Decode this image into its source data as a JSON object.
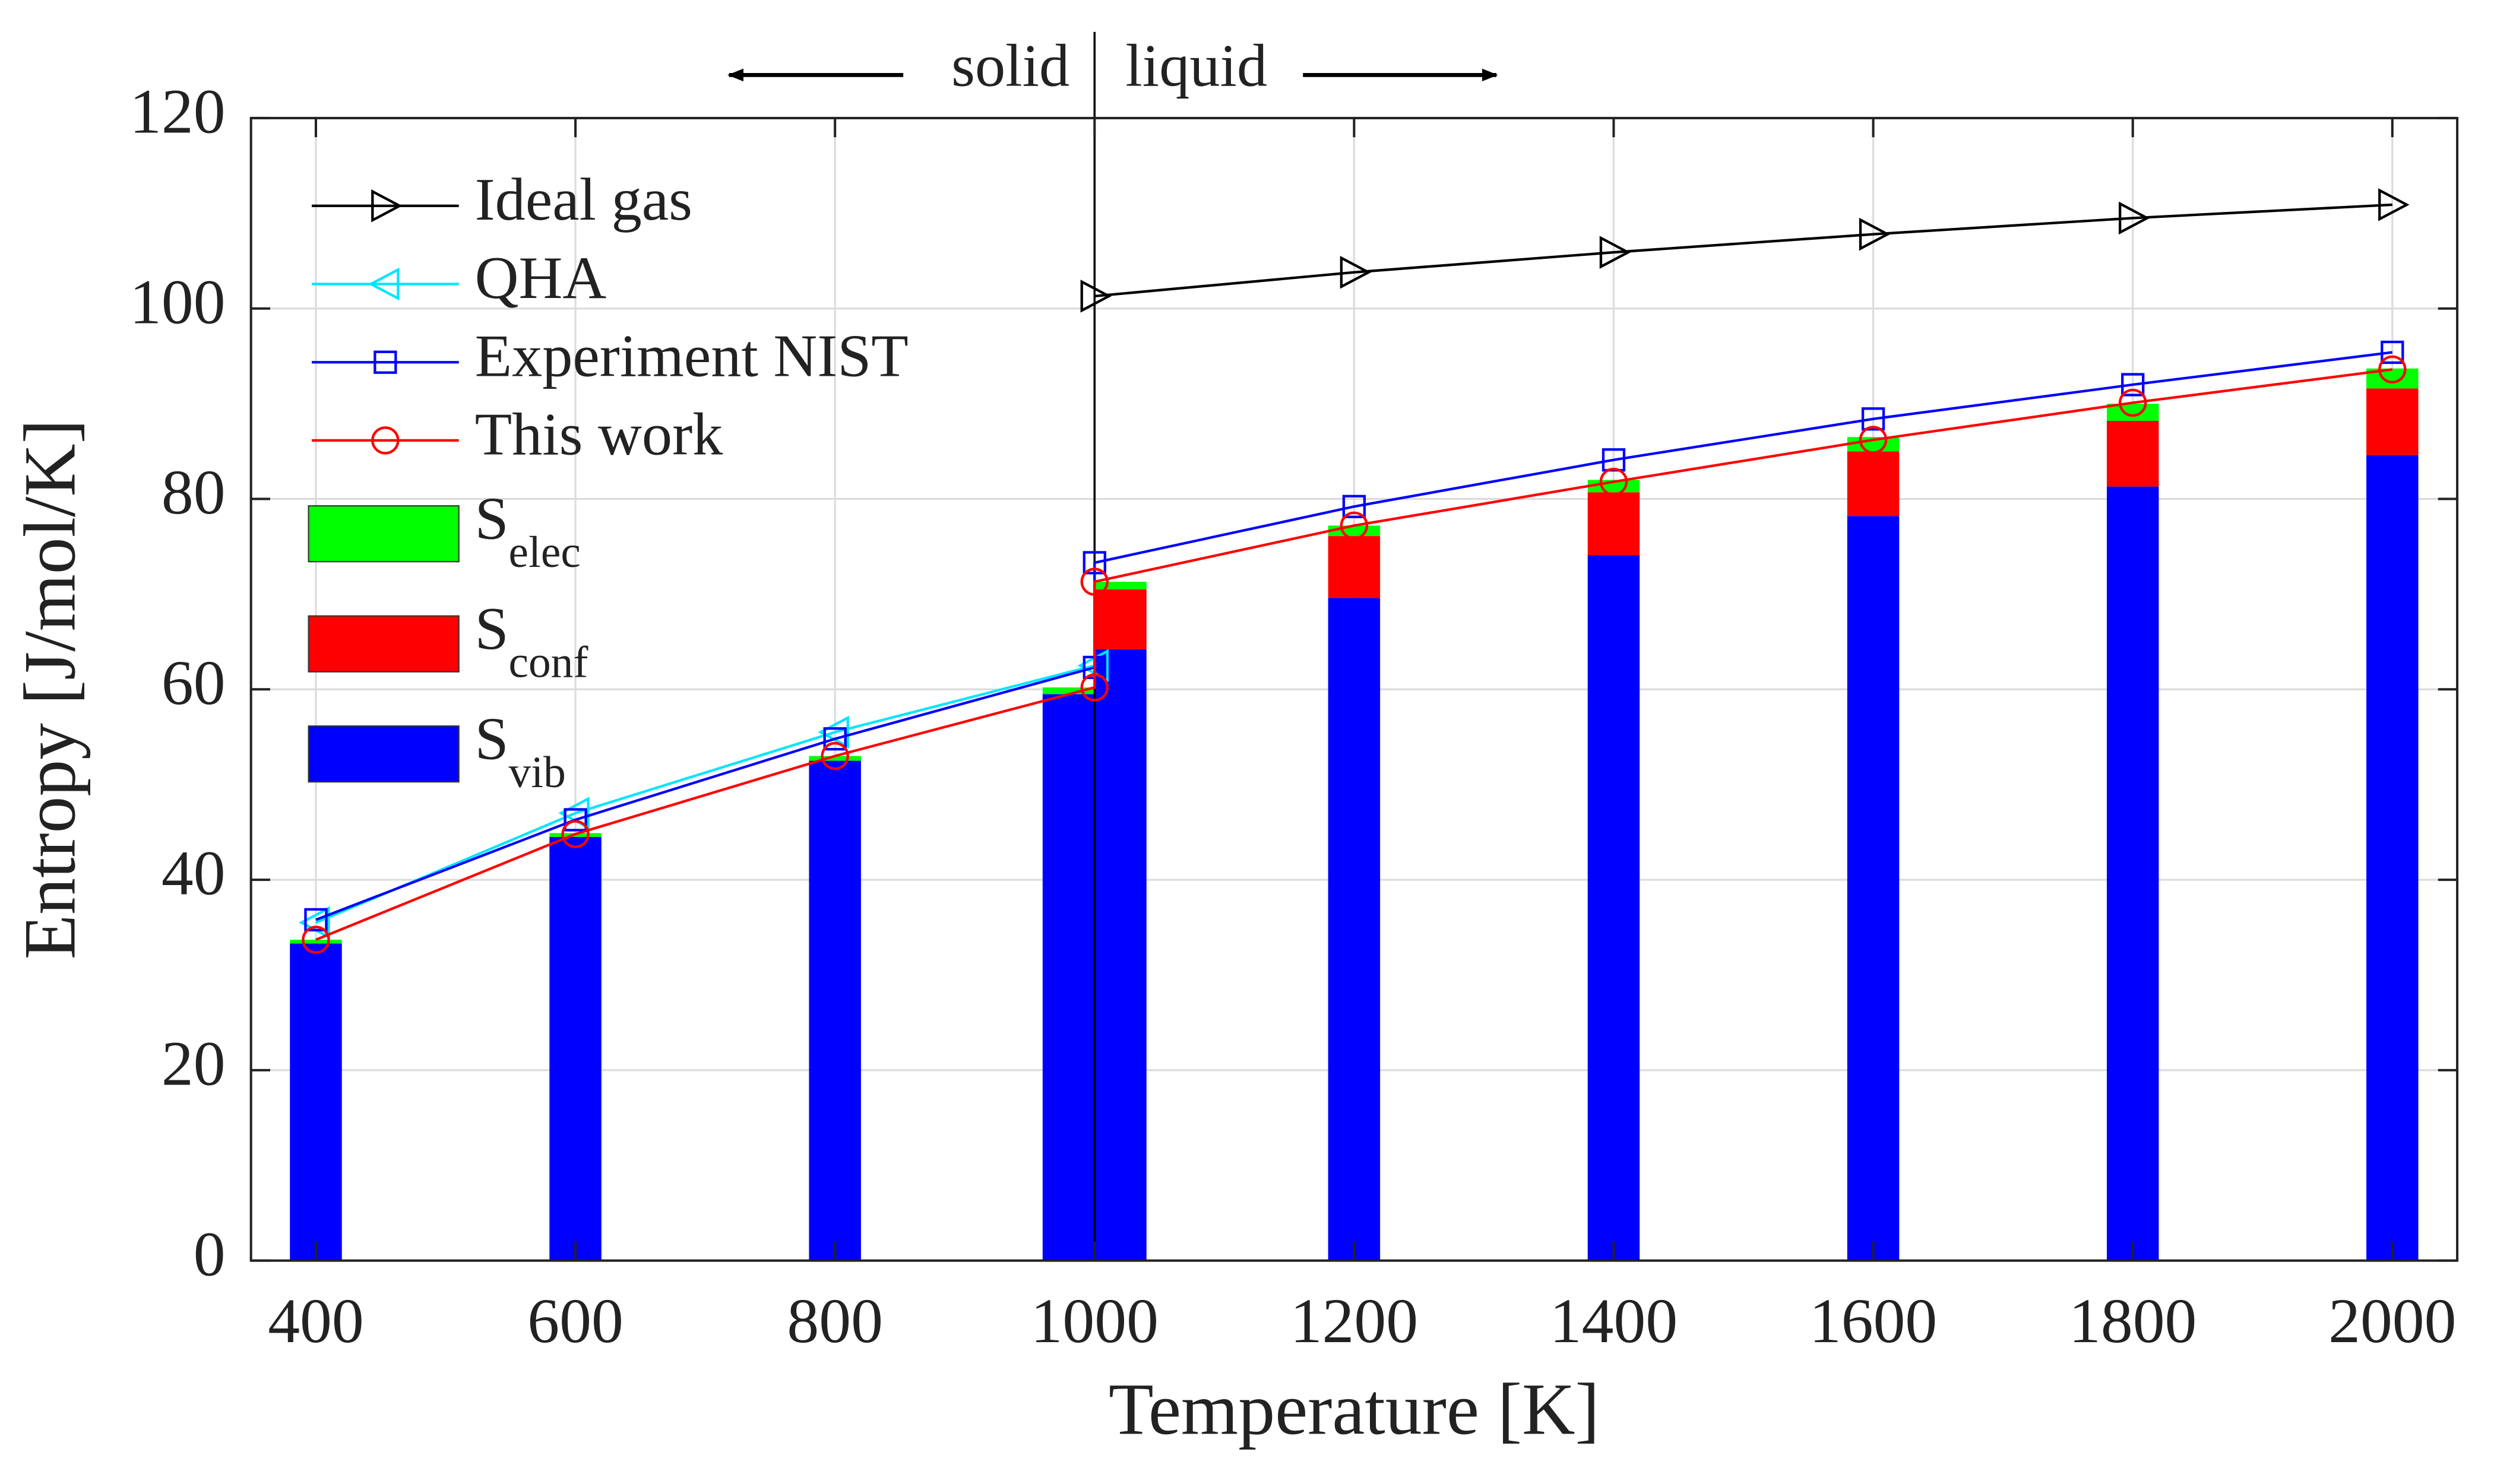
{
  "chart_data": {
    "type": "bar",
    "xlabel": "Temperature [K]",
    "ylabel": "Entropy [J/mol/K]",
    "xlim": [
      350,
      2050
    ],
    "ylim": [
      0,
      120
    ],
    "xticks": [
      400,
      600,
      800,
      1000,
      1200,
      1400,
      1600,
      1800,
      2000
    ],
    "yticks": [
      0,
      20,
      40,
      60,
      80,
      100,
      120
    ],
    "grid": true,
    "legend": "upper left",
    "phase_boundary": 1000,
    "annotations": [
      "solid",
      "liquid"
    ],
    "series": [
      {
        "name": "Ideal gas",
        "kind": "line",
        "marker": "triangle-right",
        "color": "#000000",
        "x": [
          1000,
          1200,
          1400,
          1600,
          1800,
          2000
        ],
        "values": [
          101.3,
          103.8,
          105.9,
          107.8,
          109.5,
          110.9
        ]
      },
      {
        "name": "QHA",
        "kind": "line",
        "marker": "triangle-left",
        "color": "#00e5ff",
        "x": [
          400,
          600,
          800,
          1000
        ],
        "values": [
          35.5,
          47.0,
          55.5,
          62.5
        ]
      },
      {
        "name": "Experiment NIST",
        "kind": "line",
        "marker": "square",
        "color": "#0000ff",
        "x": [
          400,
          600,
          800,
          1000,
          1000,
          1200,
          1400,
          1600,
          1800,
          2000
        ],
        "values": [
          35.8,
          46.3,
          54.8,
          62.3,
          73.3,
          79.2,
          84.1,
          88.4,
          92.0,
          95.4
        ]
      },
      {
        "name": "This work",
        "kind": "line",
        "marker": "circle",
        "color": "#ff0000",
        "x": [
          400,
          600,
          800,
          1000,
          1000,
          1200,
          1400,
          1600,
          1800,
          2000
        ],
        "values": [
          33.7,
          44.8,
          53.0,
          60.2,
          71.3,
          77.2,
          81.8,
          86.2,
          90.1,
          93.6
        ]
      },
      {
        "name": "Selec",
        "kind": "bar",
        "color": "#00ff00",
        "x": [
          400,
          600,
          800,
          980,
          1020,
          1200,
          1400,
          1600,
          1800,
          2000
        ],
        "values": [
          0.4,
          0.4,
          0.5,
          0.7,
          0.8,
          1.1,
          1.3,
          1.5,
          1.8,
          2.1
        ]
      },
      {
        "name": "Sconf",
        "kind": "bar",
        "color": "#ff0000",
        "x": [
          400,
          600,
          800,
          980,
          1020,
          1200,
          1400,
          1600,
          1800,
          2000
        ],
        "values": [
          0,
          0,
          0,
          0,
          6.3,
          6.5,
          6.6,
          6.8,
          6.9,
          7.0
        ]
      },
      {
        "name": "Svib",
        "kind": "bar",
        "color": "#0000ff",
        "x": [
          400,
          600,
          800,
          980,
          1020,
          1200,
          1400,
          1600,
          1800,
          2000
        ],
        "values": [
          33.3,
          44.5,
          52.5,
          59.5,
          64.2,
          69.6,
          74.1,
          78.2,
          81.3,
          84.6
        ]
      }
    ]
  }
}
